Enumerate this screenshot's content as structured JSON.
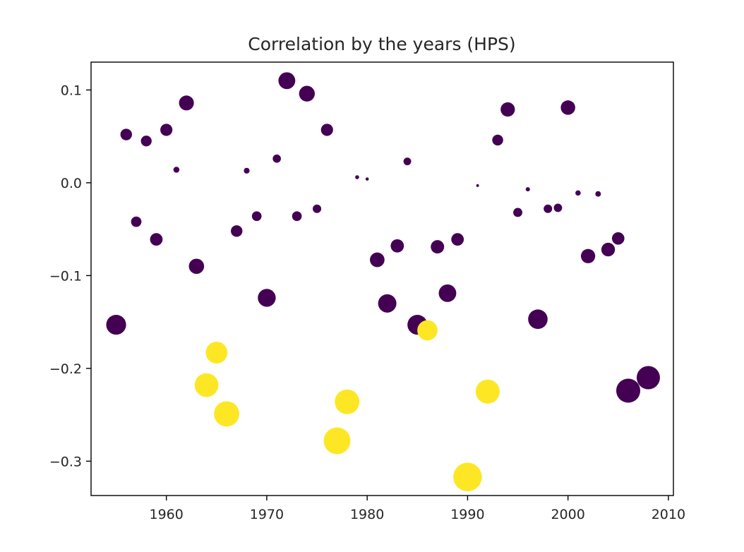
{
  "chart_data": {
    "type": "scatter",
    "title": "Correlation by the years (HPS)",
    "xlabel": "",
    "ylabel": "",
    "xlim": [
      1952.5,
      2010.5
    ],
    "ylim": [
      -0.337,
      0.13
    ],
    "x_ticks": [
      1960,
      1970,
      1980,
      1990,
      2000,
      2010
    ],
    "y_ticks": [
      0.1,
      0.0,
      -0.1,
      -0.2,
      -0.3
    ],
    "y_tick_labels": [
      "0.1",
      "0.0",
      "−0.1",
      "−0.2",
      "−0.3"
    ],
    "grid": false,
    "legend": "none",
    "colors": {
      "significant": "#fde725",
      "not_significant": "#440154"
    },
    "note": "marker area scales with |correlation|",
    "series": [
      {
        "group": "not_significant",
        "color": "#440154",
        "points": [
          {
            "x": 1955,
            "y": -0.153
          },
          {
            "x": 1956,
            "y": 0.052
          },
          {
            "x": 1957,
            "y": -0.042
          },
          {
            "x": 1958,
            "y": 0.045
          },
          {
            "x": 1959,
            "y": -0.061
          },
          {
            "x": 1960,
            "y": 0.057
          },
          {
            "x": 1961,
            "y": 0.014
          },
          {
            "x": 1962,
            "y": 0.086
          },
          {
            "x": 1963,
            "y": -0.09
          },
          {
            "x": 1967,
            "y": -0.052
          },
          {
            "x": 1968,
            "y": 0.013
          },
          {
            "x": 1969,
            "y": -0.036
          },
          {
            "x": 1970,
            "y": -0.124
          },
          {
            "x": 1971,
            "y": 0.026
          },
          {
            "x": 1972,
            "y": 0.11
          },
          {
            "x": 1973,
            "y": -0.036
          },
          {
            "x": 1974,
            "y": 0.096
          },
          {
            "x": 1975,
            "y": -0.028
          },
          {
            "x": 1976,
            "y": 0.057
          },
          {
            "x": 1979,
            "y": 0.006
          },
          {
            "x": 1980,
            "y": 0.004
          },
          {
            "x": 1981,
            "y": -0.083
          },
          {
            "x": 1982,
            "y": -0.13
          },
          {
            "x": 1983,
            "y": -0.068
          },
          {
            "x": 1984,
            "y": 0.023
          },
          {
            "x": 1985,
            "y": -0.153
          },
          {
            "x": 1987,
            "y": -0.069
          },
          {
            "x": 1988,
            "y": -0.119
          },
          {
            "x": 1989,
            "y": -0.061
          },
          {
            "x": 1991,
            "y": -0.003
          },
          {
            "x": 1993,
            "y": 0.046
          },
          {
            "x": 1994,
            "y": 0.079
          },
          {
            "x": 1995,
            "y": -0.032
          },
          {
            "x": 1996,
            "y": -0.007
          },
          {
            "x": 1997,
            "y": -0.147
          },
          {
            "x": 1998,
            "y": -0.028
          },
          {
            "x": 1999,
            "y": -0.027
          },
          {
            "x": 2000,
            "y": 0.081
          },
          {
            "x": 2001,
            "y": -0.011
          },
          {
            "x": 2002,
            "y": -0.079
          },
          {
            "x": 2003,
            "y": -0.012
          },
          {
            "x": 2004,
            "y": -0.072
          },
          {
            "x": 2005,
            "y": -0.06
          },
          {
            "x": 2006,
            "y": -0.224
          },
          {
            "x": 2008,
            "y": -0.21
          }
        ]
      },
      {
        "group": "significant",
        "color": "#fde725",
        "points": [
          {
            "x": 1964,
            "y": -0.218
          },
          {
            "x": 1965,
            "y": -0.183
          },
          {
            "x": 1966,
            "y": -0.249
          },
          {
            "x": 1977,
            "y": -0.278
          },
          {
            "x": 1978,
            "y": -0.236
          },
          {
            "x": 1986,
            "y": -0.159
          },
          {
            "x": 1990,
            "y": -0.317
          },
          {
            "x": 1992,
            "y": -0.225
          }
        ]
      }
    ]
  }
}
